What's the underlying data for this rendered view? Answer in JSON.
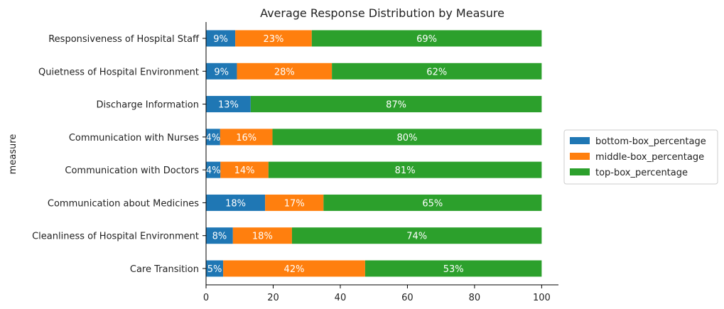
{
  "chart_data": {
    "type": "bar",
    "orientation": "horizontal",
    "stacked": true,
    "title": "Average Response Distribution by Measure",
    "xlabel": "",
    "ylabel": "measure",
    "xlim": [
      0,
      105
    ],
    "xticks": [
      0,
      20,
      40,
      60,
      80,
      100
    ],
    "grid": false,
    "legend_position": "right",
    "categories": [
      "Responsiveness of Hospital Staff",
      "Quietness of Hospital Environment",
      "Discharge Information",
      "Communication with Nurses",
      "Communication with Doctors",
      "Communication about Medicines",
      "Cleanliness of Hospital Environment",
      "Care Transition"
    ],
    "series": [
      {
        "name": "bottom-box_percentage",
        "color": "#1f77b4",
        "values": [
          8.7,
          9.2,
          13.3,
          4.2,
          4.3,
          17.6,
          8.0,
          5.1
        ],
        "labels": [
          "9%",
          "9%",
          "13%",
          "4%",
          "4%",
          "18%",
          "8%",
          "5%"
        ]
      },
      {
        "name": "middle-box_percentage",
        "color": "#ff7f0e",
        "values": [
          22.8,
          28.3,
          0,
          15.6,
          14.3,
          17.4,
          17.6,
          42.3
        ],
        "labels": [
          "23%",
          "28%",
          "",
          "16%",
          "14%",
          "17%",
          "18%",
          "42%"
        ]
      },
      {
        "name": "top-box_percentage",
        "color": "#2ca02c",
        "values": [
          68.5,
          62.5,
          86.7,
          80.2,
          81.4,
          65.0,
          74.4,
          52.6
        ],
        "labels": [
          "69%",
          "62%",
          "87%",
          "80%",
          "81%",
          "65%",
          "74%",
          "53%"
        ]
      }
    ]
  }
}
